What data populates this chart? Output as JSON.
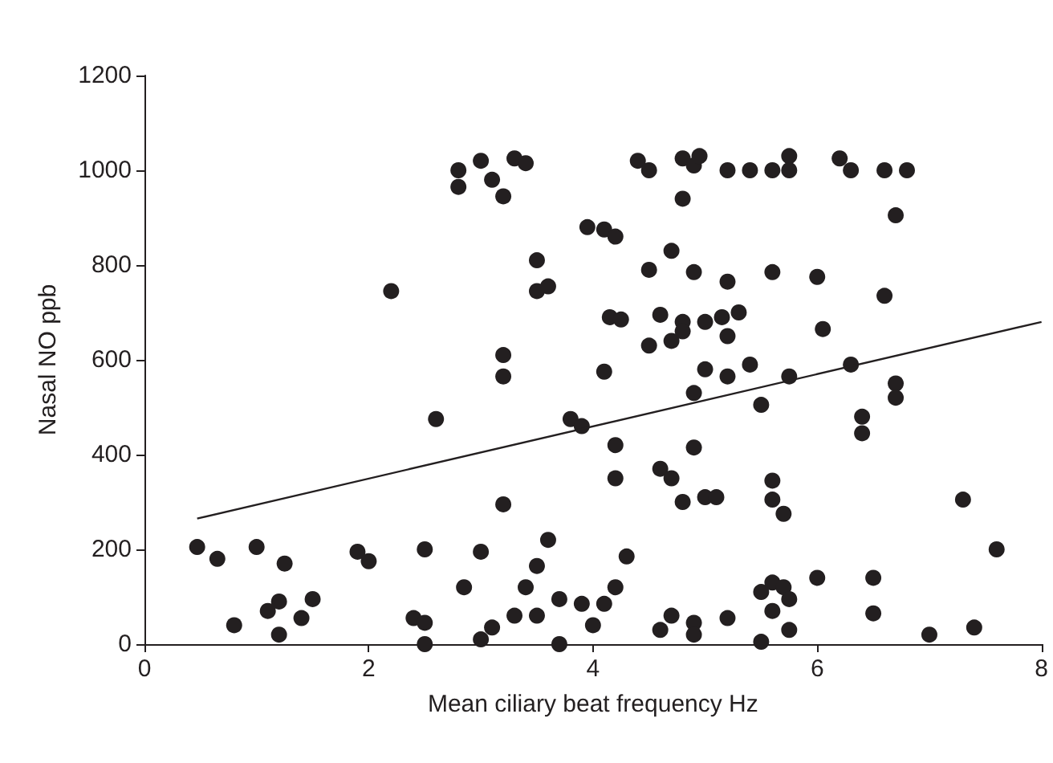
{
  "chart_data": {
    "type": "scatter",
    "xlabel": "Mean ciliary beat frequency Hz",
    "ylabel": "Nasal NO ppb",
    "xlim": [
      0,
      8
    ],
    "xticks": [
      0,
      2,
      4,
      6,
      8
    ],
    "ylim": [
      0,
      1200
    ],
    "yticks": [
      0,
      200,
      400,
      600,
      800,
      1000,
      1200
    ],
    "grid": false,
    "series": [
      {
        "marker": "circle",
        "color": "#231f20",
        "x": [
          0.47,
          0.65,
          0.8,
          1.0,
          1.1,
          1.2,
          1.2,
          1.25,
          1.4,
          1.5,
          1.9,
          2.0,
          2.2,
          2.4,
          2.5,
          2.5,
          2.5,
          2.6,
          2.8,
          2.8,
          2.85,
          3.0,
          3.0,
          3.0,
          3.1,
          3.1,
          3.2,
          3.2,
          3.2,
          3.2,
          3.3,
          3.3,
          3.4,
          3.4,
          3.5,
          3.5,
          3.5,
          3.5,
          3.6,
          3.6,
          3.7,
          3.7,
          3.8,
          3.9,
          3.9,
          3.95,
          4.0,
          4.1,
          4.1,
          4.1,
          4.15,
          4.2,
          4.2,
          4.2,
          4.2,
          4.25,
          4.3,
          4.4,
          4.5,
          4.5,
          4.5,
          4.6,
          4.6,
          4.6,
          4.7,
          4.7,
          4.7,
          4.7,
          4.8,
          4.8,
          4.8,
          4.8,
          4.8,
          4.9,
          4.9,
          4.9,
          4.9,
          4.9,
          4.9,
          4.95,
          5.0,
          5.0,
          5.0,
          5.1,
          5.15,
          5.2,
          5.2,
          5.2,
          5.2,
          5.2,
          5.3,
          5.4,
          5.4,
          5.5,
          5.5,
          5.5,
          5.6,
          5.6,
          5.6,
          5.6,
          5.6,
          5.6,
          5.7,
          5.7,
          5.75,
          5.75,
          5.75,
          5.75,
          5.75,
          6.0,
          6.0,
          6.05,
          6.2,
          6.3,
          6.3,
          6.4,
          6.4,
          6.5,
          6.5,
          6.6,
          6.6,
          6.7,
          6.7,
          6.7,
          6.8,
          7.0,
          7.3,
          7.4,
          7.6
        ],
        "values": [
          205,
          180,
          40,
          205,
          70,
          20,
          90,
          170,
          55,
          95,
          195,
          175,
          745,
          55,
          0,
          45,
          200,
          475,
          965,
          1000,
          120,
          195,
          10,
          1020,
          35,
          980,
          945,
          610,
          565,
          295,
          1025,
          60,
          120,
          1015,
          60,
          810,
          745,
          165,
          755,
          220,
          0,
          95,
          475,
          460,
          85,
          880,
          40,
          875,
          575,
          85,
          690,
          860,
          420,
          350,
          120,
          685,
          185,
          1020,
          1000,
          630,
          790,
          695,
          370,
          30,
          350,
          830,
          640,
          60,
          1025,
          940,
          680,
          660,
          300,
          1010,
          785,
          530,
          415,
          45,
          20,
          1030,
          680,
          580,
          310,
          310,
          690,
          765,
          1000,
          650,
          565,
          55,
          700,
          1000,
          590,
          110,
          505,
          5,
          1000,
          785,
          345,
          305,
          130,
          70,
          120,
          275,
          1030,
          1000,
          565,
          95,
          30,
          775,
          140,
          665,
          1025,
          1000,
          590,
          480,
          445,
          140,
          65,
          1000,
          735,
          905,
          550,
          520,
          1000,
          20,
          305,
          35,
          200
        ]
      },
      {
        "type": "line",
        "marker": "none",
        "color": "#231f20",
        "x": [
          0.47,
          8
        ],
        "values": [
          265,
          680
        ]
      }
    ]
  }
}
